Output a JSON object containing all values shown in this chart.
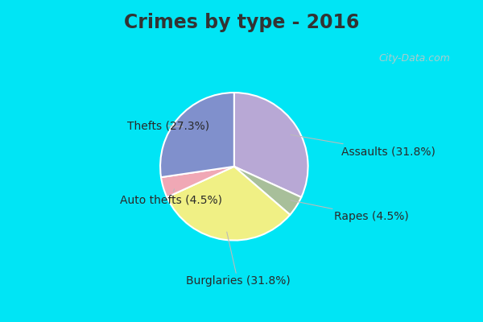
{
  "title": "Crimes by type - 2016",
  "labels": [
    "Assaults",
    "Rapes",
    "Burglaries",
    "Auto thefts",
    "Thefts"
  ],
  "values": [
    31.8,
    4.5,
    31.8,
    4.5,
    27.3
  ],
  "colors": [
    "#b8a8d5",
    "#a8bf9a",
    "#f0f085",
    "#f0a8b5",
    "#8090cc"
  ],
  "background_cyan": "#00e5f5",
  "background_mint": "#c8e8d8",
  "title_fontsize": 17,
  "label_fontsize": 10,
  "watermark": "City-Data.com",
  "startangle": 90,
  "title_color": "#333333"
}
